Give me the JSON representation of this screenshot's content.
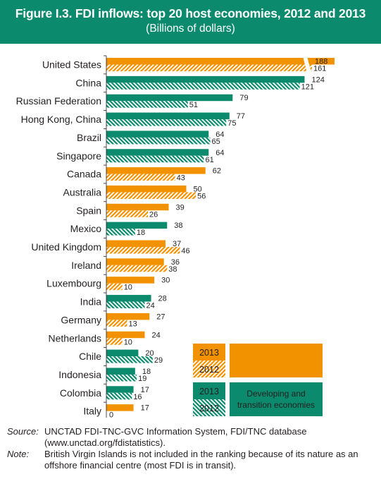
{
  "header": {
    "title": "Figure I.3. FDI inflows: top 20 host economies, 2012 and 2013",
    "subtitle": "(Billions of dollars)"
  },
  "chart_data": {
    "type": "bar",
    "orientation": "horizontal",
    "categories": [
      "United States",
      "China",
      "Russian Federation",
      "Hong Kong, China",
      "Brazil",
      "Singapore",
      "Canada",
      "Australia",
      "Spain",
      "Mexico",
      "United Kingdom",
      "Ireland",
      "Luxembourg",
      "India",
      "Germany",
      "Netherlands",
      "Chile",
      "Indonesia",
      "Colombia",
      "Italy"
    ],
    "group": [
      "developed",
      "developing",
      "developing",
      "developing",
      "developing",
      "developing",
      "developed",
      "developed",
      "developed",
      "developing",
      "developed",
      "developed",
      "developed",
      "developing",
      "developed",
      "developed",
      "developing",
      "developing",
      "developing",
      "developed"
    ],
    "series": [
      {
        "name": "2013",
        "values": [
          188,
          124,
          79,
          77,
          64,
          64,
          62,
          50,
          39,
          38,
          37,
          36,
          30,
          28,
          27,
          24,
          20,
          18,
          17,
          17
        ]
      },
      {
        "name": "2012",
        "values": [
          161,
          121,
          51,
          75,
          65,
          61,
          43,
          56,
          26,
          18,
          46,
          38,
          10,
          24,
          13,
          10,
          29,
          19,
          16,
          0
        ]
      }
    ],
    "xlim": [
      0,
      188
    ],
    "axis_break": true,
    "colors": {
      "developed": "#f39200",
      "developing": "#0b8a6d"
    },
    "legend": {
      "placement": "bottom-right",
      "items": [
        {
          "label": "2013",
          "group": "developed",
          "style": "solid"
        },
        {
          "label": "2012",
          "group": "developed",
          "style": "hatched"
        },
        {
          "label": "2013",
          "group": "developing",
          "style": "solid"
        },
        {
          "label": "2012",
          "group": "developing",
          "style": "hatched"
        }
      ],
      "developed_caption": "",
      "developing_caption": "Developing and transition economies"
    }
  },
  "notes": {
    "source_key": "Source",
    "source_text": "UNCTAD FDI-TNC-GVC Information System, FDI/TNC database (www.unctad.org/fdistatistics).",
    "note_key": "Note",
    "note_text": "British Virgin Islands is not included in the ranking because of its nature as an offshore financial centre (most FDI is in transit)."
  }
}
